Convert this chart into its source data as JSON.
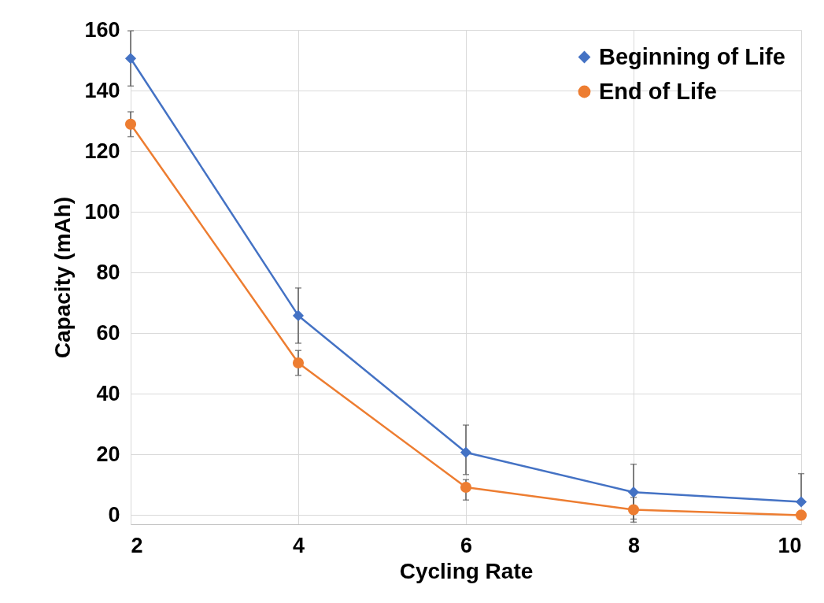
{
  "chart_data": {
    "type": "line",
    "xlabel": "Cycling Rate",
    "ylabel": "Capacity (mAh)",
    "x": [
      2,
      4,
      6,
      8,
      10
    ],
    "series": [
      {
        "name": "Beginning of Life",
        "color": "#4472c4",
        "marker": "diamond",
        "values": [
          150.6,
          65.8,
          20.7,
          7.6,
          4.4
        ],
        "errors": [
          [
            141.5,
            159.7
          ],
          [
            56.7,
            74.9
          ],
          [
            13.4,
            29.7
          ],
          [
            -2.3,
            16.8
          ],
          [
            4.4,
            13.7
          ]
        ]
      },
      {
        "name": "End of Life",
        "color": "#ed7d31",
        "marker": "circle",
        "values": [
          128.9,
          50.2,
          9.2,
          1.8,
          0
        ],
        "errors": [
          [
            124.8,
            133.0
          ],
          [
            46.1,
            54.3
          ],
          [
            5.0,
            11.7
          ],
          [
            -1.3,
            5.9
          ],
          null
        ]
      }
    ],
    "xlim": [
      2,
      10
    ],
    "xticks": [
      2,
      4,
      6,
      8,
      10
    ],
    "ylim": [
      -3,
      160
    ],
    "yticks": [
      0,
      20,
      40,
      60,
      80,
      100,
      120,
      140,
      160
    ],
    "grid": true,
    "legend": "top right",
    "line_style": "solid"
  }
}
